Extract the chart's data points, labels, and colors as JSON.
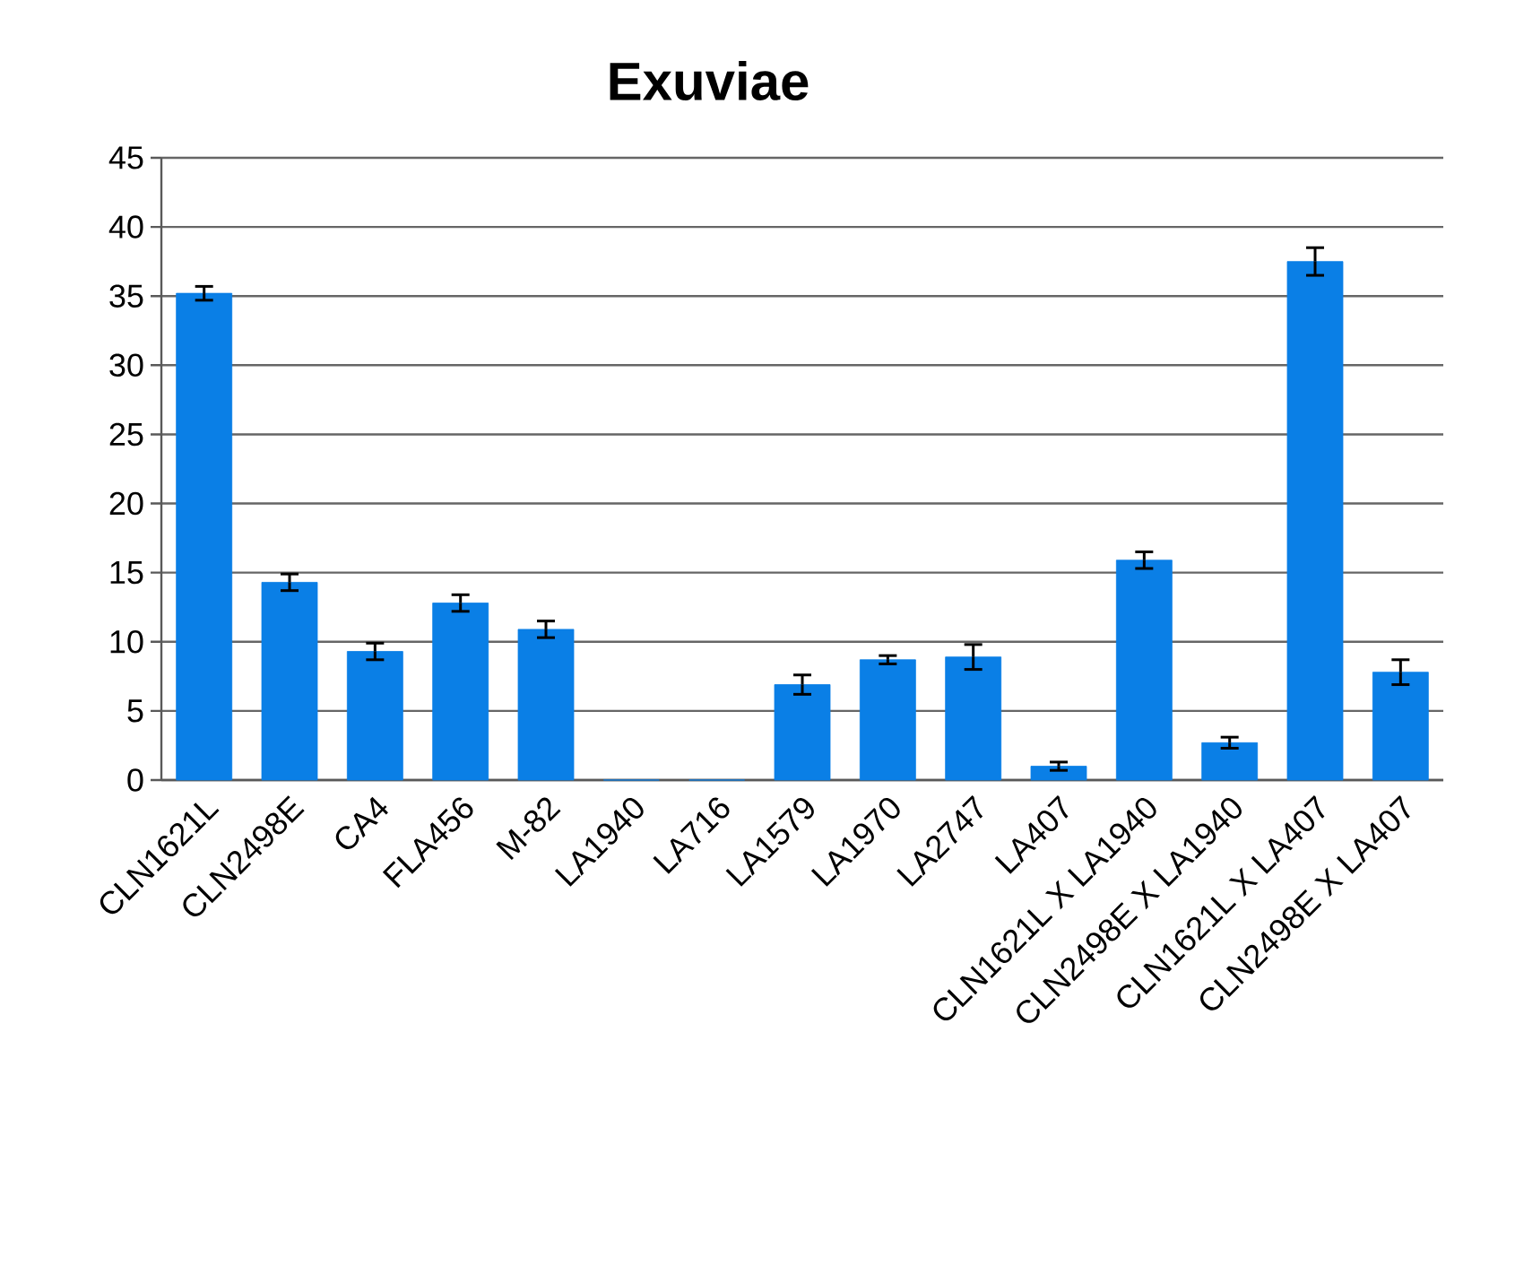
{
  "chart_data": {
    "type": "bar",
    "title": "Exuviae",
    "categories": [
      "CLN1621L",
      "CLN2498E",
      "CA4",
      "FLA456",
      "M-82",
      "LA1940",
      "LA716",
      "LA1579",
      "LA1970",
      "LA2747",
      "LA407",
      "CLN1621L X LA1940",
      "CLN2498E X LA1940",
      "CLN1621L X LA407",
      "CLN2498E X LA407"
    ],
    "values": [
      35.2,
      14.3,
      9.3,
      12.8,
      10.9,
      0,
      0,
      6.9,
      8.7,
      8.9,
      1.0,
      15.9,
      2.7,
      37.5,
      7.8
    ],
    "errors": [
      0.5,
      0.6,
      0.6,
      0.6,
      0.6,
      null,
      null,
      0.7,
      0.3,
      0.9,
      0.3,
      0.6,
      0.4,
      1.0,
      0.9
    ],
    "color": "#0a7fe6",
    "ylim": [
      0,
      45
    ],
    "yticks": [
      0,
      5,
      10,
      15,
      20,
      25,
      30,
      35,
      40,
      45
    ],
    "grid": "y"
  }
}
